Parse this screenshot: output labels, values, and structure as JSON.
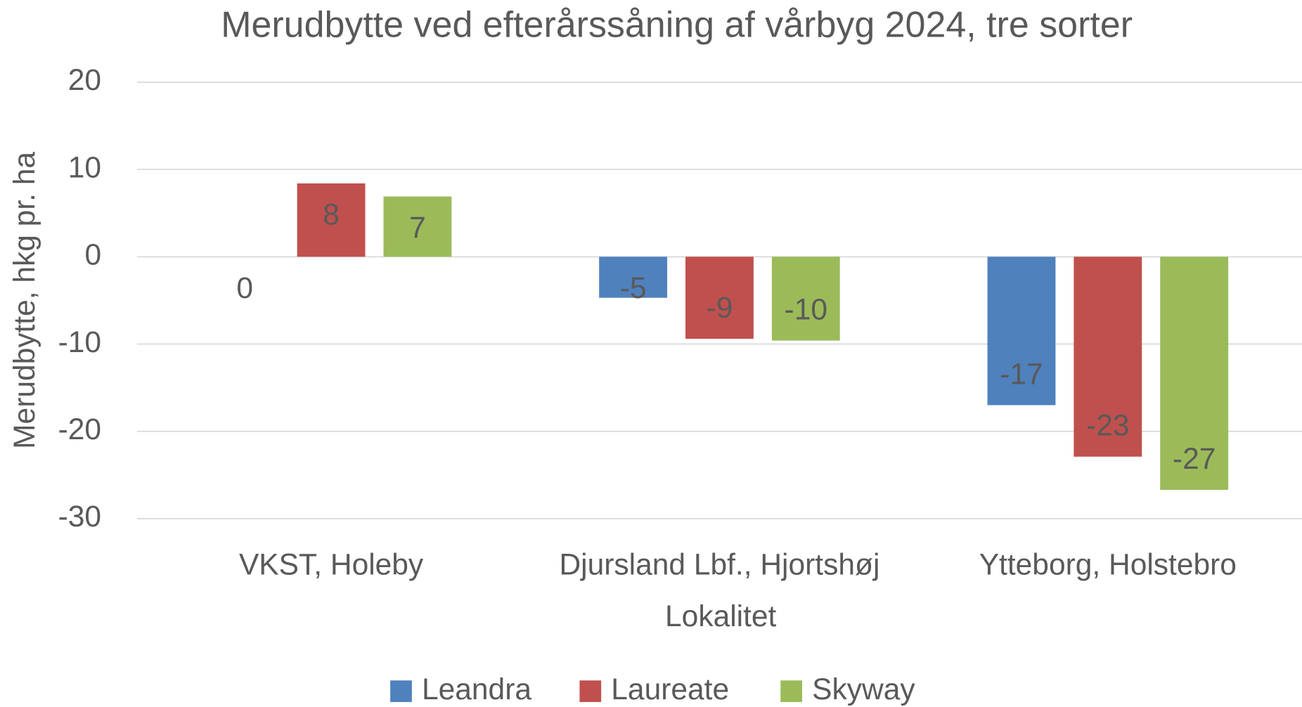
{
  "chart_data": {
    "type": "bar",
    "title": "Merudbytte ved efterårssåning af vårbyg 2024, tre sorter",
    "x_label": "Lokalitet",
    "y_label": "Merudbytte, hkg pr. ha",
    "categories": [
      "VKST, Holeby",
      "Djursland Lbf., Hjortshøj",
      "Ytteborg, Holstebro"
    ],
    "series": [
      {
        "name": "Leandra",
        "color": "#4f81bd",
        "values": [
          0,
          -4.7,
          -17
        ],
        "value_labels": [
          "0",
          "-5",
          "-17"
        ]
      },
      {
        "name": "Laureate",
        "color": "#c0504d",
        "values": [
          8.4,
          -9.4,
          -22.9
        ],
        "value_labels": [
          "8",
          "-9",
          "-23"
        ]
      },
      {
        "name": "Skyway",
        "color": "#9bbb59",
        "values": [
          6.9,
          -9.6,
          -26.7
        ],
        "value_labels": [
          "7",
          "-10",
          "-27"
        ]
      }
    ],
    "ylim": [
      -30,
      20
    ],
    "yticks": [
      -30,
      -20,
      -10,
      0,
      10,
      20
    ],
    "grid": true,
    "legend": "bottom"
  }
}
